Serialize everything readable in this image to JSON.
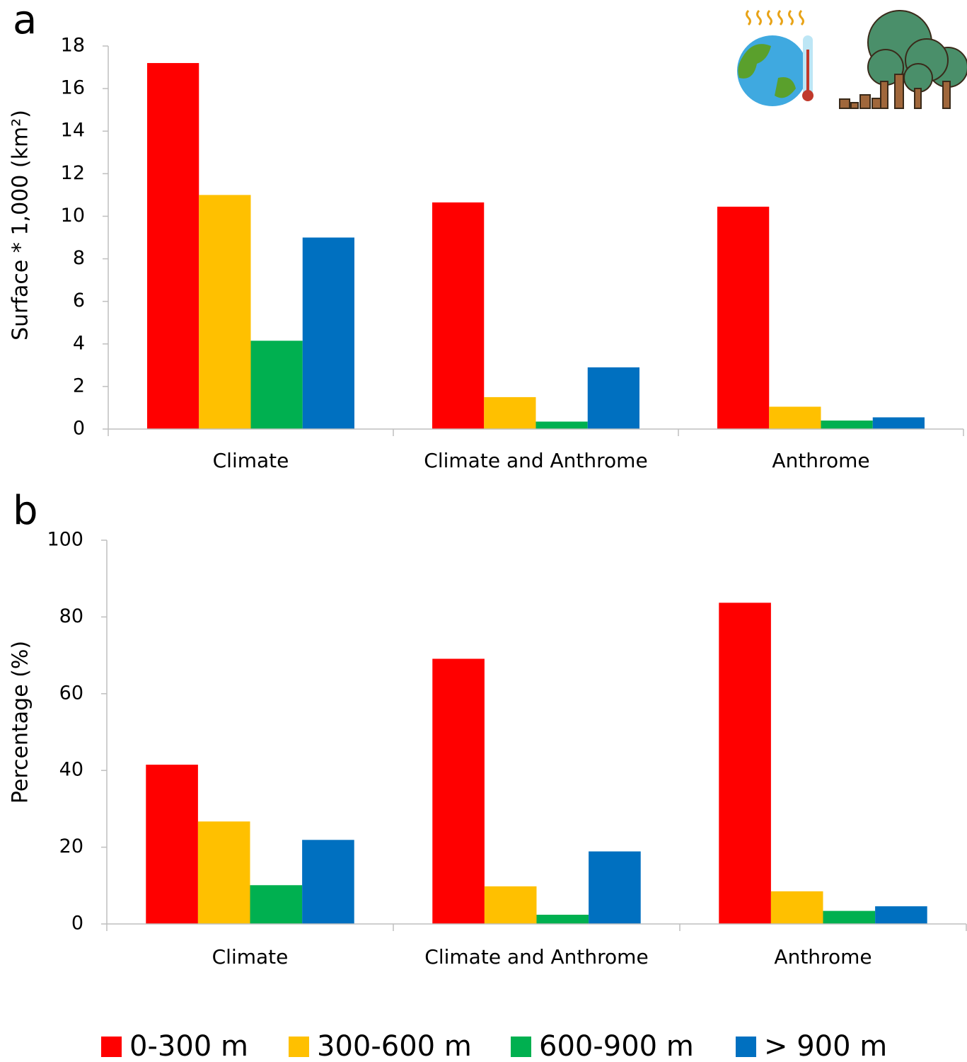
{
  "chart_data": [
    {
      "type": "bar",
      "panel_label": "a",
      "ylabel": "Surface * 1,000  (km²)",
      "categories": [
        "Climate",
        "Climate and Anthrome",
        "Anthrome"
      ],
      "series": [
        {
          "name": "0-300 m",
          "color": "#ff0000",
          "values": [
            17.2,
            10.65,
            10.45
          ]
        },
        {
          "name": "300-600 m",
          "color": "#ffc000",
          "values": [
            11.0,
            1.5,
            1.05
          ]
        },
        {
          "name": "600-900 m",
          "color": "#00b050",
          "values": [
            4.15,
            0.35,
            0.4
          ]
        },
        {
          "name": "> 900 m",
          "color": "#0070c0",
          "values": [
            9.0,
            2.9,
            0.55
          ]
        }
      ],
      "ylim": [
        0,
        18
      ],
      "yticks": [
        0,
        2,
        4,
        6,
        8,
        10,
        12,
        14,
        16,
        18
      ]
    },
    {
      "type": "bar",
      "panel_label": "b",
      "ylabel": "Percentage (%)",
      "categories": [
        "Climate",
        "Climate and Anthrome",
        "Anthrome"
      ],
      "series": [
        {
          "color": "#ff0000",
          "values": [
            41.5,
            69.1,
            83.7
          ]
        },
        {
          "color": "#ffc000",
          "values": [
            26.7,
            9.8,
            8.5
          ]
        },
        {
          "color": "#00b050",
          "values": [
            10.1,
            2.4,
            3.4
          ]
        },
        {
          "color": "#0070c0",
          "values": [
            21.9,
            18.9,
            4.6
          ]
        }
      ],
      "ylim": [
        0,
        100
      ],
      "yticks": [
        0,
        20,
        40,
        60,
        80,
        100
      ]
    }
  ]
}
